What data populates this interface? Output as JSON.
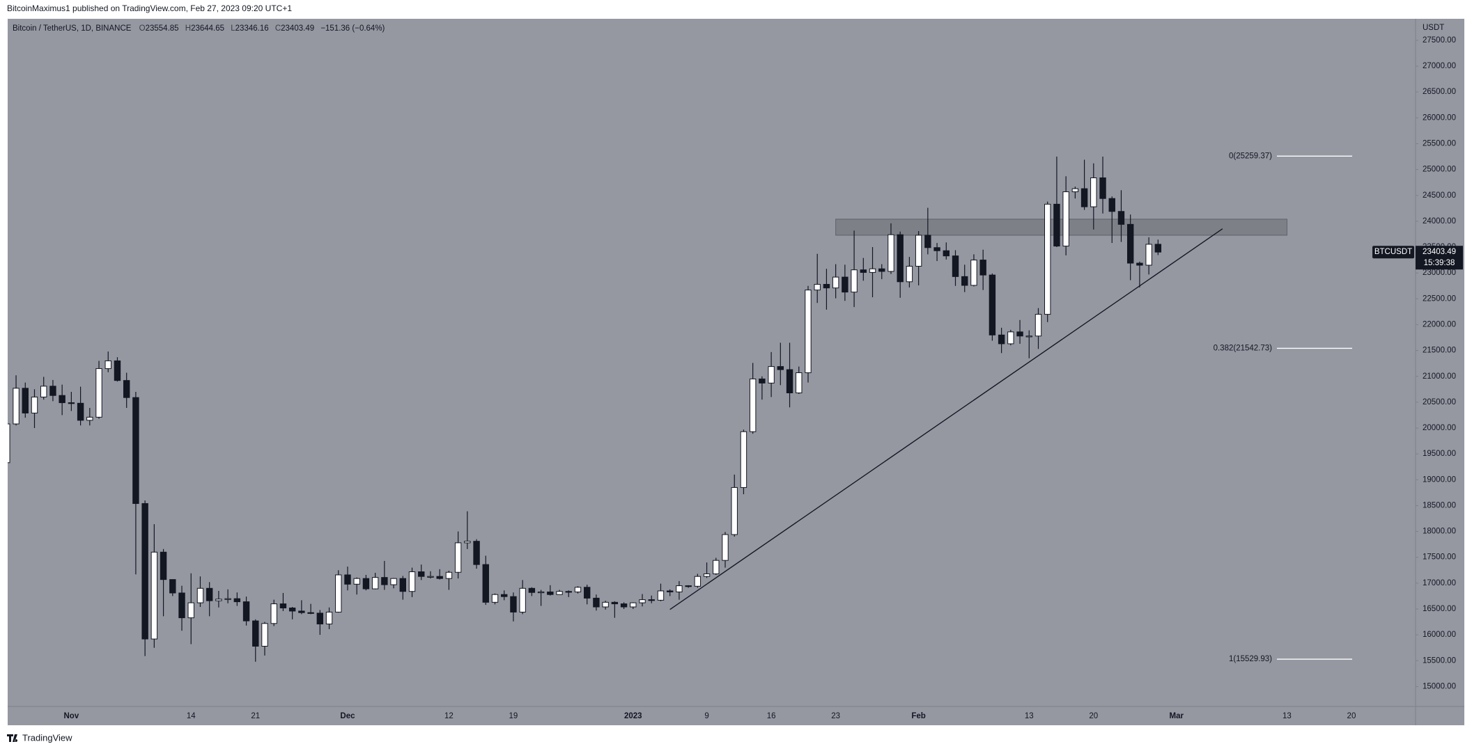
{
  "publisher": "BitcoinMaximus1 published on TradingView.com, Feb 27, 2023 09:20 UTC+1",
  "footer": {
    "brand": "TradingView"
  },
  "chart_data": {
    "type": "candlestick",
    "title": "Bitcoin / TetherUS, 1D, BINANCE",
    "ohlc_labels": [
      "O",
      "H",
      "L",
      "C"
    ],
    "change": "−151.36 (−0.64%)",
    "y_axis_label": "USDT",
    "symbol_tag": "BTCUSDT",
    "countdown": "15:39:38",
    "background": "#9598a1",
    "up_color": "#ffffff",
    "down_color": "#131722",
    "categories": [
      null,
      null,
      null,
      null,
      null,
      null,
      null,
      "Nov",
      null,
      null,
      null,
      null,
      null,
      null,
      null,
      null,
      null,
      null,
      null,
      null,
      "14",
      null,
      null,
      null,
      null,
      null,
      null,
      "21",
      null,
      null,
      null,
      null,
      null,
      null,
      null,
      null,
      null,
      "Dec",
      null,
      null,
      null,
      null,
      null,
      null,
      null,
      null,
      null,
      null,
      "12",
      null,
      null,
      null,
      null,
      null,
      null,
      "19",
      null,
      null,
      null,
      null,
      null,
      null,
      null,
      null,
      null,
      null,
      null,
      null,
      "2023",
      null,
      null,
      null,
      null,
      null,
      null,
      null,
      "9",
      null,
      null,
      null,
      null,
      null,
      null,
      "16",
      null,
      null,
      null,
      null,
      null,
      null,
      "23",
      null,
      null,
      null,
      null,
      null,
      null,
      null,
      null,
      "Feb",
      null,
      null,
      null,
      null,
      null,
      null,
      null,
      null,
      null,
      null,
      null,
      "13",
      null,
      null,
      null,
      null,
      null,
      null,
      "20",
      null,
      null,
      null,
      null,
      null,
      null,
      null,
      null,
      "Mar",
      null,
      null,
      null,
      null,
      null,
      null,
      null,
      null,
      null,
      null,
      null,
      "13",
      null,
      null,
      null,
      null,
      null,
      null,
      "20",
      null,
      null,
      null,
      null,
      null,
      null,
      null
    ],
    "open": [
      19330,
      20080,
      20770,
      20290,
      20600,
      20810,
      20630,
      20490,
      20480,
      20150,
      20210,
      21150,
      21300,
      20920,
      20590,
      18540,
      15920,
      17600,
      17070,
      16810,
      16330,
      16620,
      16900,
      16660,
      16690,
      16700,
      16640,
      16270,
      15780,
      16220,
      16600,
      16520,
      16460,
      16430,
      16420,
      16210,
      16440,
      17160,
      16980,
      17090,
      16890,
      17110,
      16970,
      17090,
      16840,
      17220,
      17130,
      17130,
      17090,
      17210,
      17780,
      17810,
      17360,
      16630,
      16780,
      16740,
      16440,
      16900,
      16820,
      16830,
      16780,
      16840,
      16830,
      16920,
      16710,
      16540,
      16630,
      16600,
      16540,
      16620,
      16680,
      16670,
      16850,
      16830,
      16950,
      16940,
      17130,
      17180,
      17440,
      17940,
      18850,
      19930,
      20950,
      20870,
      21190,
      21130,
      20680,
      21070,
      22670,
      22780,
      22710,
      22920,
      22630,
      23060,
      23010,
      23080,
      23030,
      23740,
      22830,
      23130,
      23730,
      23490,
      23430,
      23330,
      22930,
      22760,
      23250,
      22960,
      21800,
      21630,
      21860,
      21780,
      21780,
      22200,
      24330,
      23520,
      24570,
      24630,
      24280,
      24840,
      24440,
      24190,
      23940,
      23190,
      23150,
      23554.85,
      null,
      null,
      null,
      null,
      null,
      null,
      null,
      null,
      null,
      null,
      null,
      null,
      null,
      null,
      null,
      null,
      null,
      null,
      null,
      null,
      null,
      null,
      null,
      null,
      null,
      null,
      null,
      null
    ],
    "high": [
      20420,
      21020,
      20880,
      20750,
      20990,
      20930,
      20840,
      20700,
      20800,
      20390,
      21300,
      21480,
      21370,
      21070,
      20700,
      18600,
      18140,
      17660,
      17070,
      16950,
      17190,
      17130,
      17020,
      16850,
      16880,
      16820,
      16740,
      16300,
      16250,
      16680,
      16810,
      16540,
      16670,
      16600,
      16480,
      16530,
      17250,
      17320,
      17110,
      17160,
      17200,
      17430,
      17100,
      17140,
      17300,
      17360,
      17230,
      17270,
      17240,
      18000,
      18390,
      17850,
      17530,
      16800,
      16860,
      16820,
      17060,
      16920,
      16870,
      16960,
      16870,
      16860,
      16940,
      16970,
      16780,
      16660,
      16650,
      16630,
      16630,
      16790,
      16760,
      16990,
      16880,
      17040,
      16960,
      17180,
      17400,
      17490,
      17990,
      19100,
      19970,
      21260,
      21000,
      21470,
      21650,
      21650,
      21190,
      22750,
      23370,
      23080,
      23170,
      23160,
      23820,
      23290,
      23500,
      23170,
      23960,
      23800,
      23310,
      23810,
      24260,
      23580,
      23590,
      23440,
      23160,
      23360,
      23450,
      22990,
      21940,
      21900,
      22090,
      21890,
      22320,
      24380,
      25250,
      24870,
      24670,
      25190,
      25120,
      25250,
      24480,
      24600,
      24130,
      23220,
      23690,
      23644.65,
      null,
      null,
      null,
      null,
      null,
      null,
      null,
      null,
      null,
      null,
      null,
      null,
      null,
      null,
      null,
      null,
      null,
      null,
      null,
      null,
      null,
      null,
      null,
      null,
      null,
      null,
      null,
      null
    ],
    "low": [
      19240,
      20050,
      20200,
      20000,
      20550,
      20520,
      20250,
      20330,
      20050,
      20050,
      20180,
      21080,
      20900,
      20390,
      17170,
      15590,
      15750,
      16360,
      16750,
      16080,
      15820,
      16540,
      16360,
      16530,
      16610,
      16560,
      16180,
      15480,
      15600,
      16170,
      16460,
      16300,
      16400,
      16400,
      16000,
      16110,
      16430,
      16860,
      16780,
      16860,
      16880,
      16870,
      16900,
      16680,
      16730,
      17060,
      17090,
      17070,
      16870,
      17090,
      17660,
      17280,
      16580,
      16590,
      16670,
      16260,
      16400,
      16750,
      16560,
      16760,
      16780,
      16730,
      16800,
      16590,
      16470,
      16490,
      16330,
      16500,
      16500,
      16550,
      16610,
      16650,
      16750,
      16680,
      16910,
      16910,
      17100,
      17160,
      17300,
      17900,
      18720,
      19890,
      20550,
      20600,
      20830,
      20400,
      20660,
      20880,
      22420,
      22290,
      22510,
      22460,
      22340,
      22850,
      22530,
      22880,
      22980,
      22520,
      22720,
      22760,
      23360,
      23230,
      23260,
      22750,
      22630,
      22740,
      22670,
      21690,
      21450,
      21600,
      21630,
      21350,
      21530,
      22050,
      23500,
      23340,
      24440,
      24220,
      23840,
      24150,
      23580,
      23600,
      22860,
      22720,
      22970,
      23346.16,
      null,
      null,
      null,
      null,
      null,
      null,
      null,
      null,
      null,
      null,
      null,
      null,
      null,
      null,
      null,
      null,
      null,
      null,
      null,
      null,
      null,
      null,
      null,
      null,
      null,
      null,
      null,
      null
    ],
    "close": [
      20080,
      20770,
      20290,
      20600,
      20810,
      20630,
      20490,
      20480,
      20150,
      20210,
      21150,
      21300,
      20920,
      20590,
      18540,
      15920,
      17600,
      17070,
      16810,
      16330,
      16620,
      16900,
      16660,
      16690,
      16700,
      16640,
      16270,
      15780,
      16220,
      16600,
      16520,
      16460,
      16430,
      16420,
      16210,
      16440,
      17160,
      16980,
      17090,
      16890,
      17110,
      16970,
      17090,
      16840,
      17220,
      17130,
      17130,
      17090,
      17210,
      17780,
      17810,
      17360,
      16630,
      16780,
      16740,
      16440,
      16900,
      16820,
      16830,
      16780,
      16840,
      16830,
      16920,
      16710,
      16540,
      16630,
      16600,
      16540,
      16620,
      16680,
      16670,
      16850,
      16830,
      16950,
      16940,
      17130,
      17180,
      17440,
      17940,
      18850,
      19930,
      20950,
      20870,
      21190,
      21130,
      20680,
      21070,
      22670,
      22780,
      22710,
      22920,
      22630,
      23060,
      23010,
      23080,
      23030,
      23740,
      22830,
      23130,
      23730,
      23490,
      23430,
      23330,
      22930,
      22760,
      23250,
      22960,
      21800,
      21630,
      21860,
      21780,
      21780,
      22200,
      24330,
      23520,
      24570,
      24630,
      24280,
      24840,
      24440,
      24190,
      23940,
      23190,
      23150,
      23554.85,
      23403.49,
      null,
      null,
      null,
      null,
      null,
      null,
      null,
      null,
      null,
      null,
      null,
      null,
      null,
      null,
      null,
      null,
      null,
      null,
      null,
      null,
      null,
      null,
      null,
      null,
      null,
      null,
      null,
      null
    ],
    "ylim": [
      14615,
      27916
    ],
    "yticks": [
      {
        "value": 15000,
        "label": "15000.00"
      },
      {
        "value": 15500,
        "label": "15500.00"
      },
      {
        "value": 16000,
        "label": "16000.00"
      },
      {
        "value": 16500,
        "label": "16500.00"
      },
      {
        "value": 17000,
        "label": "17000.00"
      },
      {
        "value": 17500,
        "label": "17500.00"
      },
      {
        "value": 18000,
        "label": "18000.00"
      },
      {
        "value": 18500,
        "label": "18500.00"
      },
      {
        "value": 19000,
        "label": "19000.00"
      },
      {
        "value": 19500,
        "label": "19500.00"
      },
      {
        "value": 20000,
        "label": "20000.00"
      },
      {
        "value": 20500,
        "label": "20500.00"
      },
      {
        "value": 21000,
        "label": "21000.00"
      },
      {
        "value": 21500,
        "label": "21500.00"
      },
      {
        "value": 22000,
        "label": "22000.00"
      },
      {
        "value": 22500,
        "label": "22500.00"
      },
      {
        "value": 23000,
        "label": "23000.00"
      },
      {
        "value": 23500,
        "label": "23500.00"
      },
      {
        "value": 24000,
        "label": "24000.00"
      },
      {
        "value": 24500,
        "label": "24500.00"
      },
      {
        "value": 25000,
        "label": "25000.00"
      },
      {
        "value": 25500,
        "label": "25500.00"
      },
      {
        "value": 26000,
        "label": "26000.00"
      },
      {
        "value": 26500,
        "label": "26500.00"
      },
      {
        "value": 27000,
        "label": "27000.00"
      },
      {
        "value": 27500,
        "label": "27500.00"
      }
    ],
    "fib_levels": [
      {
        "value": 25259.37,
        "label": "0(25259.37)"
      },
      {
        "value": 21542.73,
        "label": "0.382(21542.73)"
      },
      {
        "value": 15529.93,
        "label": "1(15529.93)"
      }
    ],
    "zone": {
      "from": 90,
      "to": 139,
      "low": 23730,
      "high": 24040,
      "color": "#6b6e75"
    },
    "trendline": {
      "x": [
        72,
        132
      ],
      "y": [
        16490,
        23854
      ],
      "color": "#131722"
    }
  }
}
